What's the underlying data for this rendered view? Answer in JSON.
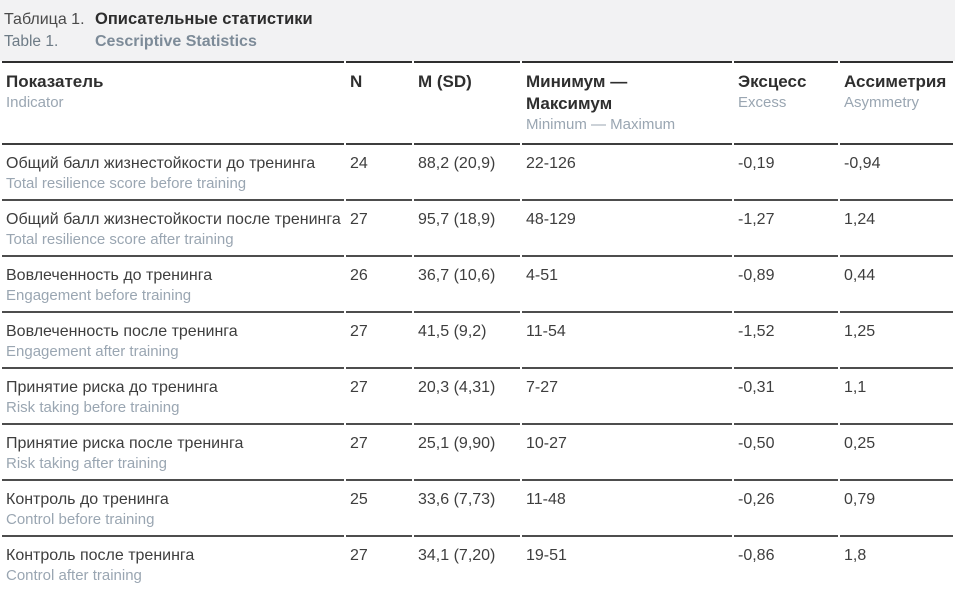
{
  "title": {
    "label_ru": "Таблица 1.",
    "text_ru": "Описательные статистики",
    "label_en": "Table 1.",
    "text_en": "Cescriptive Statistics"
  },
  "table": {
    "columns": [
      {
        "ru": "Показатель",
        "en": "Indicator"
      },
      {
        "ru": "N",
        "en": ""
      },
      {
        "ru": "M (SD)",
        "en": ""
      },
      {
        "ru": "Минимум — Максимум",
        "en": "Minimum — Maximum"
      },
      {
        "ru": "Эксцесс",
        "en": "Excess"
      },
      {
        "ru": "Ассиметрия",
        "en": "Asymmetry"
      }
    ],
    "rows": [
      {
        "ru": "Общий балл жизнестойкости до тренинга",
        "en": "Total resilience score before training",
        "n": "24",
        "m_sd": "88,2 (20,9)",
        "min_max": "22-126",
        "excess": "-0,19",
        "asymmetry": "-0,94"
      },
      {
        "ru": "Общий балл жизнестойкости после тренинга",
        "en": "Total resilience score after training",
        "n": "27",
        "m_sd": "95,7 (18,9)",
        "min_max": "48-129",
        "excess": "-1,27",
        "asymmetry": "1,24"
      },
      {
        "ru": "Вовлеченность до тренинга",
        "en": "Engagement before training",
        "n": "26",
        "m_sd": "36,7 (10,6)",
        "min_max": "4-51",
        "excess": "-0,89",
        "asymmetry": "0,44"
      },
      {
        "ru": "Вовлеченность после тренинга",
        "en": "Engagement after training",
        "n": "27",
        "m_sd": "41,5 (9,2)",
        "min_max": "11-54",
        "excess": "-1,52",
        "asymmetry": "1,25"
      },
      {
        "ru": "Принятие риска до тренинга",
        "en": "Risk taking before training",
        "n": "27",
        "m_sd": "20,3 (4,31)",
        "min_max": "7-27",
        "excess": "-0,31",
        "asymmetry": "1,1"
      },
      {
        "ru": "Принятие риска после тренинга",
        "en": "Risk taking after training",
        "n": "27",
        "m_sd": "25,1 (9,90)",
        "min_max": "10-27",
        "excess": "-0,50",
        "asymmetry": "0,25"
      },
      {
        "ru": "Контроль до тренинга",
        "en": "Control before training",
        "n": "25",
        "m_sd": "33,6 (7,73)",
        "min_max": "11-48",
        "excess": "-0,26",
        "asymmetry": "0,79"
      },
      {
        "ru": "Контроль после тренинга",
        "en": "Control after training",
        "n": "27",
        "m_sd": "34,1 (7,20)",
        "min_max": "19-51",
        "excess": "-0,86",
        "asymmetry": "1,8"
      }
    ]
  },
  "colors": {
    "title_band_bg": "#f2f2f3",
    "rule_dark": "#3e3e3e",
    "text_dark": "#3e3e3e",
    "text_muted_blue": "#9aa6b2"
  }
}
